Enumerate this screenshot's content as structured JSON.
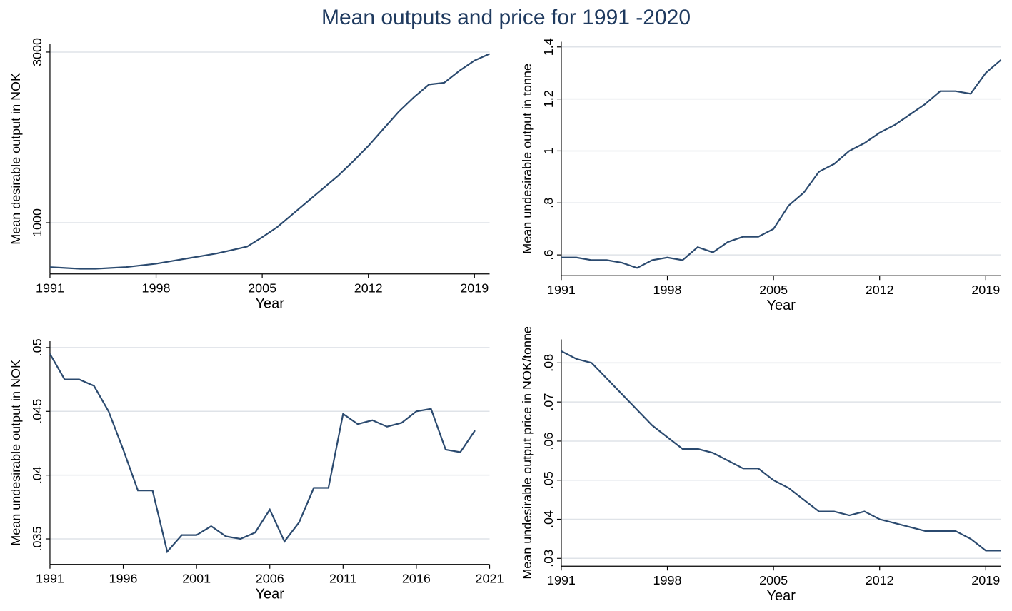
{
  "title": "Mean outputs and price for 1991 -2020",
  "title_color": "#1f3a5f",
  "title_fontsize": 30,
  "background_color": "#ffffff",
  "grid_color": "#dfe3e8",
  "line_color": "#2b4a6f",
  "axis_color": "#000000",
  "text_color": "#000000",
  "tick_fontsize": 18,
  "label_fontsize": 18,
  "line_width": 2.2,
  "panels": [
    {
      "id": "panel-tl",
      "ylabel": "Mean desirable output in NOK",
      "xlabel": "Year",
      "xlim": [
        1991,
        2020
      ],
      "xticks": [
        1991,
        1998,
        2005,
        2012,
        2019
      ],
      "ylim": [
        400,
        3100
      ],
      "yticks": [
        1000,
        3000
      ],
      "ytick_labels": [
        "1000",
        "3000"
      ],
      "data": {
        "x": [
          1991,
          1992,
          1993,
          1994,
          1995,
          1996,
          1997,
          1998,
          1999,
          2000,
          2001,
          2002,
          2003,
          2004,
          2005,
          2006,
          2007,
          2008,
          2009,
          2010,
          2011,
          2012,
          2013,
          2014,
          2015,
          2016,
          2017,
          2018,
          2019,
          2020
        ],
        "y": [
          480,
          470,
          460,
          460,
          470,
          480,
          500,
          520,
          550,
          580,
          610,
          640,
          680,
          720,
          830,
          950,
          1100,
          1250,
          1400,
          1550,
          1720,
          1900,
          2100,
          2300,
          2470,
          2620,
          2640,
          2780,
          2900,
          2980
        ]
      }
    },
    {
      "id": "panel-tr",
      "ylabel": "Mean undesirable output in tonne",
      "xlabel": "Year",
      "xlim": [
        1991,
        2020
      ],
      "xticks": [
        1991,
        1998,
        2005,
        2012,
        2019
      ],
      "ylim": [
        0.52,
        1.42
      ],
      "yticks": [
        0.6,
        0.8,
        1.0,
        1.2,
        1.4
      ],
      "ytick_labels": [
        ".6",
        ".8",
        "1",
        "1.2",
        "1.4"
      ],
      "data": {
        "x": [
          1991,
          1992,
          1993,
          1994,
          1995,
          1996,
          1997,
          1998,
          1999,
          2000,
          2001,
          2002,
          2003,
          2004,
          2005,
          2006,
          2007,
          2008,
          2009,
          2010,
          2011,
          2012,
          2013,
          2014,
          2015,
          2016,
          2017,
          2018,
          2019,
          2020
        ],
        "y": [
          0.59,
          0.59,
          0.58,
          0.58,
          0.57,
          0.55,
          0.58,
          0.59,
          0.58,
          0.63,
          0.61,
          0.65,
          0.67,
          0.67,
          0.7,
          0.79,
          0.84,
          0.92,
          0.95,
          1.0,
          1.03,
          1.07,
          1.1,
          1.14,
          1.18,
          1.23,
          1.23,
          1.22,
          1.3,
          1.35
        ]
      }
    },
    {
      "id": "panel-bl",
      "ylabel": "Mean undesirable output in NOK",
      "xlabel": "Year",
      "xlim": [
        1991,
        2021
      ],
      "xticks": [
        1991,
        1996,
        2001,
        2006,
        2011,
        2016,
        2021
      ],
      "ylim": [
        0.033,
        0.0505
      ],
      "yticks": [
        0.035,
        0.04,
        0.045,
        0.05
      ],
      "ytick_labels": [
        ".035",
        ".04",
        ".045",
        ".05"
      ],
      "data": {
        "x": [
          1991,
          1992,
          1993,
          1994,
          1995,
          1996,
          1997,
          1998,
          1999,
          2000,
          2001,
          2002,
          2003,
          2004,
          2005,
          2006,
          2007,
          2008,
          2009,
          2010,
          2011,
          2012,
          2013,
          2014,
          2015,
          2016,
          2017,
          2018,
          2019,
          2020
        ],
        "y": [
          0.0495,
          0.0475,
          0.0475,
          0.047,
          0.045,
          0.042,
          0.0388,
          0.0388,
          0.034,
          0.0353,
          0.0353,
          0.036,
          0.0352,
          0.035,
          0.0355,
          0.0373,
          0.0348,
          0.0363,
          0.039,
          0.039,
          0.0448,
          0.044,
          0.0443,
          0.0438,
          0.0441,
          0.045,
          0.0452,
          0.042,
          0.0418,
          0.0435
        ]
      }
    },
    {
      "id": "panel-br",
      "ylabel": "Mean undesirable output price in NOK/tonne",
      "xlabel": "Year",
      "xlim": [
        1991,
        2020
      ],
      "xticks": [
        1991,
        1998,
        2005,
        2012,
        2019
      ],
      "ylim": [
        0.028,
        0.086
      ],
      "yticks": [
        0.03,
        0.04,
        0.05,
        0.06,
        0.07,
        0.08
      ],
      "ytick_labels": [
        ".03",
        ".04",
        ".05",
        ".06",
        ".07",
        ".08"
      ],
      "data": {
        "x": [
          1991,
          1992,
          1993,
          1994,
          1995,
          1996,
          1997,
          1998,
          1999,
          2000,
          2001,
          2002,
          2003,
          2004,
          2005,
          2006,
          2007,
          2008,
          2009,
          2010,
          2011,
          2012,
          2013,
          2014,
          2015,
          2016,
          2017,
          2018,
          2019,
          2020
        ],
        "y": [
          0.083,
          0.081,
          0.08,
          0.076,
          0.072,
          0.068,
          0.064,
          0.061,
          0.058,
          0.058,
          0.057,
          0.055,
          0.053,
          0.053,
          0.05,
          0.048,
          0.045,
          0.042,
          0.042,
          0.041,
          0.042,
          0.04,
          0.039,
          0.038,
          0.037,
          0.037,
          0.037,
          0.035,
          0.032,
          0.032
        ]
      }
    }
  ]
}
